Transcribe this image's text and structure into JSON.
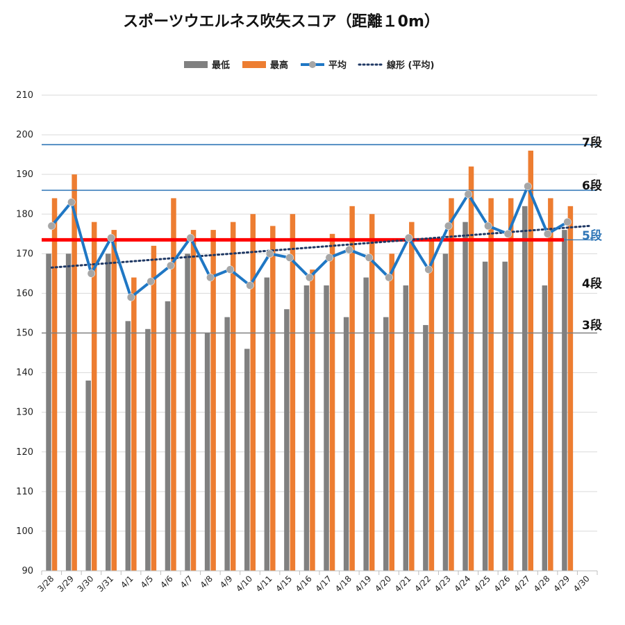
{
  "chart_data": {
    "type": "bar",
    "title": "スポーツウエルネス吹矢スコア（距離１0m）",
    "categories": [
      "3/28",
      "3/29",
      "3/30",
      "3/31",
      "4/1",
      "4/5",
      "4/6",
      "4/7",
      "4/8",
      "4/9",
      "4/10",
      "4/11",
      "4/15",
      "4/16",
      "4/17",
      "4/18",
      "4/19",
      "4/20",
      "4/21",
      "4/22",
      "4/23",
      "4/24",
      "4/25",
      "4/26",
      "4/27",
      "4/28",
      "4/29",
      "4/30"
    ],
    "series": [
      {
        "name": "最低",
        "type": "bar",
        "color": "#808080",
        "values": [
          170,
          170,
          138,
          170,
          153,
          151,
          158,
          170,
          150,
          154,
          146,
          164,
          156,
          162,
          162,
          154,
          164,
          154,
          162,
          152,
          170,
          178,
          168,
          168,
          182,
          162,
          176,
          null
        ]
      },
      {
        "name": "最高",
        "type": "bar",
        "color": "#ED7D31",
        "values": [
          184,
          190,
          178,
          176,
          164,
          172,
          184,
          176,
          176,
          178,
          180,
          177,
          180,
          166,
          175,
          182,
          180,
          170,
          178,
          174,
          184,
          192,
          184,
          184,
          196,
          184,
          182,
          null
        ]
      },
      {
        "name": "平均",
        "type": "line",
        "color": "#1F77C4",
        "marker_color": "#A6A6A6",
        "values": [
          177,
          183,
          165,
          174,
          159,
          163,
          167,
          174,
          164,
          166,
          162,
          170,
          169,
          164,
          169,
          171,
          169,
          164,
          174,
          166,
          177,
          185,
          177,
          175,
          187,
          175,
          178,
          null
        ]
      },
      {
        "name": "線形 (平均)",
        "type": "trendline",
        "style": "dotted",
        "color": "#1F3864",
        "start_value": 166.5,
        "end_value": 177
      }
    ],
    "ylim": [
      90,
      210
    ],
    "yticks": [
      90,
      100,
      110,
      120,
      130,
      140,
      150,
      160,
      170,
      180,
      190,
      200,
      210
    ],
    "grid": true,
    "legend_position": "top-center",
    "reference_lines": [
      {
        "label": "7段",
        "value": 197.5,
        "color": "#2E75B6",
        "label_color": "#111111"
      },
      {
        "label": "6段",
        "value": 186,
        "color": "#2E75B6",
        "label_color": "#111111"
      },
      {
        "label": "5段",
        "value": 173.5,
        "color": "#FF0000",
        "label_color": "#2E75B6",
        "thick": true
      },
      {
        "label": "4段",
        "value": null,
        "label_color": "#111111"
      },
      {
        "label": "3段",
        "value": 150,
        "color": "#808080",
        "label_color": "#111111"
      }
    ],
    "xlabel": "",
    "ylabel": ""
  }
}
